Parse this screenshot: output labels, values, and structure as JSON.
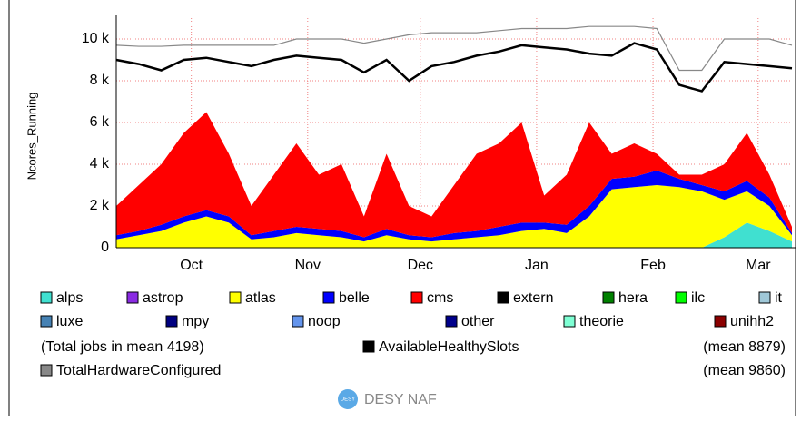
{
  "chart_data": {
    "type": "stacked_area",
    "y_label": "Ncores_Running",
    "x": [
      0,
      6,
      12,
      18,
      24,
      30,
      36,
      42,
      48,
      54,
      60,
      66,
      72,
      78,
      84,
      90,
      96,
      102,
      108,
      114,
      120,
      126,
      132,
      138,
      144,
      150,
      156,
      162,
      168,
      174,
      180
    ],
    "xlim": [
      0,
      180
    ],
    "xticks": [
      {
        "value": 20,
        "label": "Oct"
      },
      {
        "value": 51,
        "label": "Nov"
      },
      {
        "value": 81,
        "label": "Dec"
      },
      {
        "value": 112,
        "label": "Jan"
      },
      {
        "value": 143,
        "label": "Feb"
      },
      {
        "value": 171,
        "label": "Mar"
      }
    ],
    "ylim": [
      0,
      11000
    ],
    "yticks": [
      {
        "value": 0,
        "label": "0"
      },
      {
        "value": 2000,
        "label": "2 k"
      },
      {
        "value": 4000,
        "label": "4 k"
      },
      {
        "value": 6000,
        "label": "6 k"
      },
      {
        "value": 8000,
        "label": "8 k"
      },
      {
        "value": 10000,
        "label": "10 k"
      }
    ],
    "grid": true,
    "series": [
      {
        "name": "alps",
        "color": "#40e0d0",
        "values": [
          0,
          0,
          0,
          0,
          0,
          0,
          0,
          0,
          0,
          0,
          0,
          0,
          0,
          0,
          0,
          0,
          0,
          0,
          0,
          0,
          0,
          0,
          0,
          0,
          0,
          0,
          0,
          500,
          1200,
          800,
          300
        ]
      },
      {
        "name": "astrop",
        "color": "#8a2be2",
        "values": [
          0,
          0,
          0,
          0,
          0,
          0,
          0,
          0,
          0,
          0,
          0,
          0,
          0,
          0,
          0,
          0,
          0,
          0,
          0,
          0,
          0,
          0,
          0,
          0,
          0,
          0,
          0,
          0,
          0,
          0,
          0
        ]
      },
      {
        "name": "atlas",
        "color": "#ffff00",
        "values": [
          400,
          600,
          800,
          1200,
          1500,
          1200,
          400,
          500,
          700,
          600,
          500,
          300,
          600,
          400,
          300,
          400,
          500,
          600,
          800,
          900,
          700,
          1500,
          2800,
          2900,
          3000,
          2900,
          2700,
          1800,
          1500,
          1200,
          300
        ]
      },
      {
        "name": "belle",
        "color": "#0000ff",
        "values": [
          200,
          200,
          300,
          300,
          300,
          300,
          200,
          300,
          300,
          300,
          300,
          200,
          300,
          200,
          200,
          300,
          300,
          400,
          400,
          300,
          400,
          500,
          500,
          500,
          700,
          400,
          300,
          400,
          500,
          400,
          100
        ]
      },
      {
        "name": "cms",
        "color": "#ff0000",
        "values": [
          1400,
          2200,
          2900,
          4000,
          4700,
          3000,
          1400,
          2700,
          4000,
          2600,
          3200,
          1000,
          3600,
          1400,
          1000,
          2300,
          3700,
          4000,
          4800,
          1300,
          2400,
          4000,
          1200,
          1600,
          800,
          200,
          500,
          1300,
          2300,
          1100,
          300
        ]
      },
      {
        "name": "extern",
        "color": "#000000",
        "values": [
          0,
          0,
          0,
          0,
          0,
          0,
          0,
          0,
          0,
          0,
          0,
          0,
          0,
          0,
          0,
          0,
          0,
          0,
          0,
          0,
          0,
          0,
          0,
          0,
          0,
          0,
          0,
          0,
          0,
          0,
          0
        ]
      },
      {
        "name": "hera",
        "color": "#008000",
        "values": [
          0,
          0,
          0,
          0,
          0,
          0,
          0,
          0,
          0,
          0,
          0,
          0,
          0,
          0,
          0,
          0,
          0,
          0,
          0,
          0,
          0,
          0,
          0,
          0,
          0,
          0,
          0,
          0,
          0,
          0,
          0
        ]
      },
      {
        "name": "ilc",
        "color": "#00ff00",
        "values": [
          0,
          0,
          0,
          0,
          0,
          0,
          0,
          0,
          0,
          0,
          0,
          0,
          0,
          0,
          0,
          0,
          0,
          0,
          0,
          0,
          0,
          0,
          0,
          0,
          0,
          0,
          0,
          0,
          0,
          0,
          0
        ]
      },
      {
        "name": "it",
        "color": "#a0c8d8",
        "values": [
          0,
          0,
          0,
          0,
          0,
          0,
          0,
          0,
          0,
          0,
          0,
          0,
          0,
          0,
          0,
          0,
          0,
          0,
          0,
          0,
          0,
          0,
          0,
          0,
          0,
          0,
          0,
          0,
          0,
          0,
          0
        ]
      },
      {
        "name": "luxe",
        "color": "#4682b4",
        "values": [
          0,
          0,
          0,
          0,
          0,
          0,
          0,
          0,
          0,
          0,
          0,
          0,
          0,
          0,
          0,
          0,
          0,
          0,
          0,
          0,
          0,
          0,
          0,
          0,
          0,
          0,
          0,
          0,
          0,
          0,
          0
        ]
      },
      {
        "name": "mpy",
        "color": "#000080",
        "values": [
          0,
          0,
          0,
          0,
          0,
          0,
          0,
          0,
          0,
          0,
          0,
          0,
          0,
          0,
          0,
          0,
          0,
          0,
          0,
          0,
          0,
          0,
          0,
          0,
          0,
          0,
          0,
          0,
          0,
          0,
          0
        ]
      },
      {
        "name": "noop",
        "color": "#6495ed",
        "values": [
          0,
          0,
          0,
          0,
          0,
          0,
          0,
          0,
          0,
          0,
          0,
          0,
          0,
          0,
          0,
          0,
          0,
          0,
          0,
          0,
          0,
          0,
          0,
          0,
          0,
          0,
          0,
          0,
          0,
          0,
          0
        ]
      },
      {
        "name": "other",
        "color": "#00008b",
        "values": [
          0,
          0,
          0,
          0,
          0,
          0,
          0,
          0,
          0,
          0,
          0,
          0,
          0,
          0,
          0,
          0,
          0,
          0,
          0,
          0,
          0,
          0,
          0,
          0,
          0,
          0,
          0,
          0,
          0,
          0,
          0
        ]
      },
      {
        "name": "theorie",
        "color": "#7fffd4",
        "values": [
          0,
          0,
          0,
          0,
          0,
          0,
          0,
          0,
          0,
          0,
          0,
          0,
          0,
          0,
          0,
          0,
          0,
          0,
          0,
          0,
          0,
          0,
          0,
          0,
          0,
          0,
          0,
          0,
          0,
          0,
          0
        ]
      },
      {
        "name": "unihh2",
        "color": "#8b0000",
        "values": [
          0,
          0,
          0,
          0,
          0,
          0,
          0,
          0,
          0,
          0,
          0,
          0,
          0,
          0,
          0,
          0,
          0,
          0,
          0,
          0,
          0,
          0,
          0,
          0,
          0,
          0,
          0,
          0,
          0,
          0,
          0
        ]
      }
    ],
    "lines": [
      {
        "name": "AvailableHealthySlots",
        "color": "#000000",
        "values": [
          9000,
          8800,
          8500,
          9000,
          9100,
          8900,
          8700,
          9000,
          9200,
          9100,
          9000,
          8400,
          9000,
          8000,
          8700,
          8900,
          9200,
          9400,
          9700,
          9600,
          9500,
          9300,
          9200,
          9800,
          9500,
          7800,
          7500,
          8900,
          8800,
          8700,
          8600
        ]
      },
      {
        "name": "TotalHardwareConfigured",
        "color": "#888888",
        "values": [
          9700,
          9650,
          9650,
          9700,
          9700,
          9700,
          9700,
          9700,
          10000,
          10000,
          10000,
          9800,
          10000,
          10200,
          10300,
          10300,
          10300,
          10400,
          10500,
          10500,
          10500,
          10600,
          10600,
          10600,
          10500,
          8500,
          8500,
          10000,
          10000,
          10000,
          9700
        ]
      }
    ],
    "annotations": {
      "total_jobs": "(Total jobs in mean  4198)",
      "available_mean": "(mean  8879)",
      "hardware_mean": "(mean  9860)"
    },
    "footer": "DESY NAF"
  }
}
